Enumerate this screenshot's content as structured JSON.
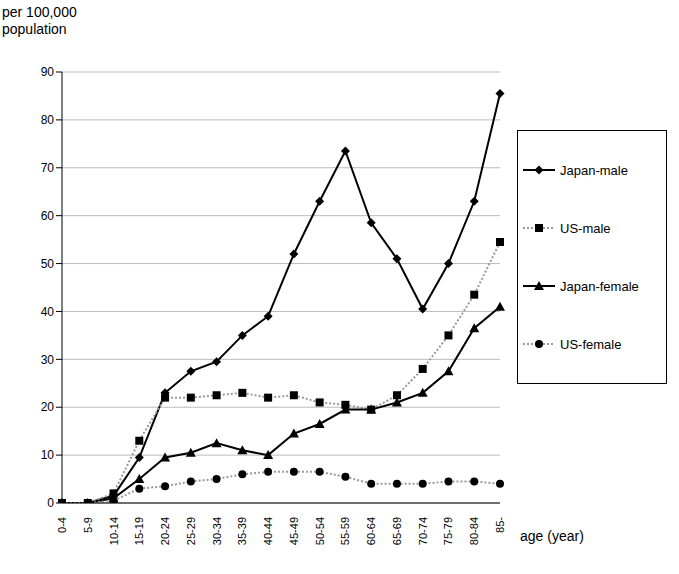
{
  "chart_data": {
    "type": "line",
    "y_label": "per 100,000 population",
    "x_label": "age (year)",
    "categories": [
      "0-4",
      "5-9",
      "10-14",
      "15-19",
      "20-24",
      "25-29",
      "30-34",
      "35-39",
      "40-44",
      "45-49",
      "50-54",
      "55-59",
      "60-64",
      "65-69",
      "70-74",
      "75-79",
      "80-84",
      "85-"
    ],
    "series": [
      {
        "name": "Japan-male",
        "color": "#000000",
        "marker": "diamond",
        "line_style": "solid",
        "values": [
          0,
          0,
          1.5,
          9.5,
          23,
          27.5,
          29.5,
          35,
          39,
          52,
          63,
          73.5,
          58.5,
          51,
          40.5,
          50,
          63,
          85.5
        ]
      },
      {
        "name": "US-male",
        "color": "#999999",
        "marker": "square",
        "line_style": "dotted",
        "values": [
          0,
          0,
          2,
          13,
          22,
          22,
          22.5,
          23,
          22,
          22.5,
          21,
          20.5,
          19.5,
          22.5,
          28,
          35,
          43.5,
          54.5
        ]
      },
      {
        "name": "Japan-female",
        "color": "#000000",
        "marker": "triangle",
        "line_style": "solid",
        "values": [
          0,
          0,
          1,
          5,
          9.5,
          10.5,
          12.5,
          11,
          10,
          14.5,
          16.5,
          19.5,
          19.5,
          21,
          23,
          27.5,
          36.5,
          41
        ]
      },
      {
        "name": "US-female",
        "color": "#999999",
        "marker": "circle",
        "line_style": "dotted",
        "values": [
          0,
          0,
          0.5,
          3,
          3.5,
          4.5,
          5,
          6,
          6.5,
          6.5,
          6.5,
          5.5,
          4,
          4,
          4,
          4.5,
          4.5,
          4
        ]
      }
    ],
    "ylim": [
      0,
      90
    ],
    "yticks": [
      0,
      10,
      20,
      30,
      40,
      50,
      60,
      70,
      80,
      90
    ],
    "grid": true,
    "legend": "right"
  }
}
